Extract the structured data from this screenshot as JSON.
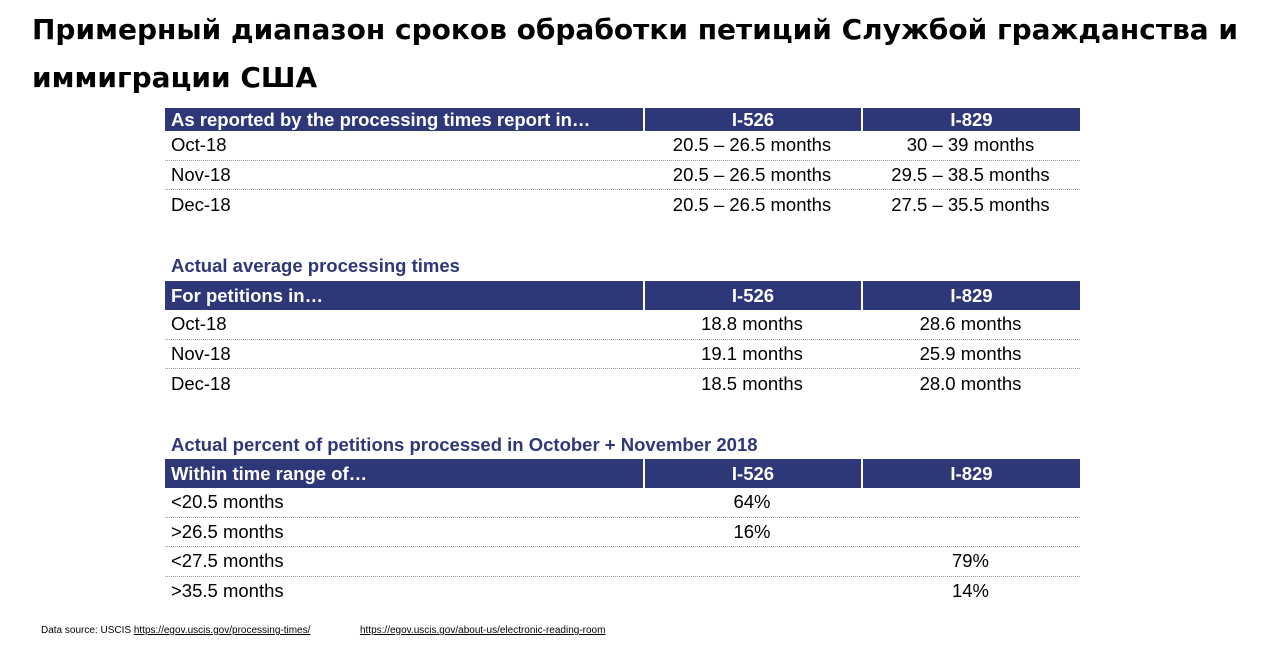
{
  "title": "Примерный диапазон сроков обработки петиций Службой гражданства и иммиграции США",
  "table1": {
    "header": [
      "As reported by the processing times report in…",
      "I-526",
      "I-829"
    ],
    "rows": [
      [
        "Oct-18",
        "20.5 – 26.5 months",
        "30 – 39 months"
      ],
      [
        "Nov-18",
        "20.5 – 26.5 months",
        "29.5 – 38.5 months"
      ],
      [
        "Dec-18",
        "20.5 – 26.5 months",
        "27.5 – 35.5 months"
      ]
    ]
  },
  "section2_label": "Actual average processing times",
  "table2": {
    "header": [
      "For petitions in…",
      "I-526",
      "I-829"
    ],
    "rows": [
      [
        "Oct-18",
        "18.8 months",
        "28.6 months"
      ],
      [
        "Nov-18",
        "19.1 months",
        "25.9 months"
      ],
      [
        "Dec-18",
        "18.5 months",
        "28.0 months"
      ]
    ]
  },
  "section3_label": "Actual percent of petitions processed in October + November 2018",
  "table3": {
    "header": [
      "Within time range of…",
      "I-526",
      "I-829"
    ],
    "rows": [
      [
        "<20.5 months",
        "64%",
        ""
      ],
      [
        ">26.5 months",
        "16%",
        ""
      ],
      [
        "<27.5 months",
        "",
        "79%"
      ],
      [
        ">35.5 months",
        "",
        "14%"
      ]
    ]
  },
  "footer": {
    "prefix": "Data source: USCIS",
    "link1": "https://egov.uscis.gov/processing-times/",
    "link2": "https://egov.uscis.gov/about-us/electronic-reading-room"
  }
}
